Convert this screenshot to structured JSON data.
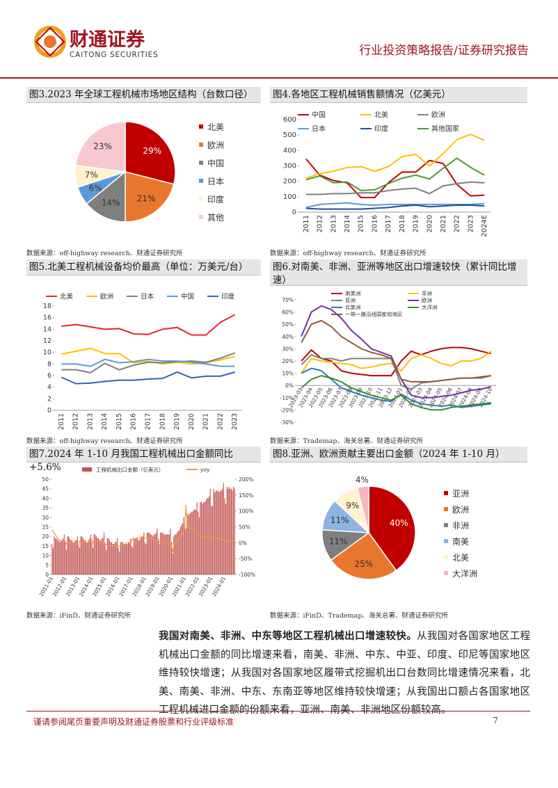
{
  "header": {
    "name": "财通证券",
    "name_en": "CAITONG SECURITIES",
    "report_type": "行业投资策略报告/证券研究报告"
  },
  "chart_data": [
    {
      "type": "pie",
      "title": "图3.2023 年全球工程机械市场地区结构（台数口径）",
      "categories": [
        "北美",
        "欧洲",
        "中国",
        "日本",
        "印度",
        "其他"
      ],
      "values": [
        29,
        21,
        14,
        6,
        7,
        23
      ],
      "value_labels": [
        "29%",
        "21%",
        "14%",
        "6%",
        "7%",
        "23%"
      ],
      "colors": [
        "#c00000",
        "#e8762c",
        "#7f7f7f",
        "#5b9bd5",
        "#fff2cc",
        "#f8c8d0"
      ],
      "source": "数据来源：off-highway research、财通证券研究所"
    },
    {
      "type": "line",
      "title": "图4.各地区工程机械销售额情况（亿美元）",
      "categories": [
        "2011",
        "2012",
        "2013",
        "2014",
        "2015",
        "2016",
        "2017",
        "2018",
        "2019",
        "2020",
        "2021",
        "2022",
        "2023",
        "2024E"
      ],
      "series": [
        {
          "name": "中国",
          "color": "#c00000",
          "values": [
            345,
            240,
            205,
            190,
            95,
            95,
            190,
            260,
            260,
            335,
            315,
            180,
            105,
            110
          ]
        },
        {
          "name": "北美",
          "color": "#ffc000",
          "values": [
            220,
            250,
            265,
            290,
            295,
            265,
            295,
            360,
            375,
            300,
            380,
            470,
            505,
            465
          ]
        },
        {
          "name": "欧洲",
          "color": "#7f7f7f",
          "values": [
            115,
            115,
            120,
            120,
            125,
            125,
            140,
            150,
            155,
            120,
            170,
            185,
            195,
            190
          ]
        },
        {
          "name": "日本",
          "color": "#5b9bd5",
          "values": [
            30,
            50,
            55,
            60,
            50,
            45,
            50,
            50,
            50,
            50,
            50,
            50,
            50,
            55
          ]
        },
        {
          "name": "印度",
          "color": "#1f4e9c",
          "values": [
            25,
            20,
            20,
            20,
            20,
            25,
            30,
            40,
            45,
            35,
            40,
            45,
            45,
            40
          ]
        },
        {
          "name": "其他国家",
          "color": "#4e9a2e",
          "values": [
            210,
            235,
            190,
            195,
            140,
            145,
            185,
            220,
            240,
            215,
            285,
            350,
            290,
            240
          ]
        }
      ],
      "ylim": [
        0,
        600
      ],
      "yticks": [
        0,
        100,
        200,
        300,
        400,
        500,
        600
      ],
      "grid": false,
      "source": "数据来源：off-highway research、财通证券研究所"
    },
    {
      "type": "line",
      "title": "图5.北美工程机械设备均价最高（单位：万美元/台）",
      "categories": [
        "2011",
        "2012",
        "2013",
        "2014",
        "2015",
        "2016",
        "2017",
        "2018",
        "2019",
        "2020",
        "2021",
        "2022",
        "2023"
      ],
      "series": [
        {
          "name": "北美",
          "color": "#e8262c",
          "values": [
            14.5,
            14.8,
            14.4,
            14.0,
            14.1,
            13.2,
            13.1,
            14.0,
            14.3,
            13.0,
            13.0,
            15.2,
            16.5
          ]
        },
        {
          "name": "欧洲",
          "color": "#ffc000",
          "values": [
            9.7,
            10.2,
            10.7,
            9.8,
            9.8,
            8.2,
            8.5,
            8.0,
            8.3,
            8.0,
            8.2,
            8.7,
            9.3
          ]
        },
        {
          "name": "日本",
          "color": "#7f7f7f",
          "values": [
            7.0,
            7.0,
            6.5,
            8.1,
            7.0,
            7.8,
            8.3,
            8.2,
            8.4,
            8.5,
            8.3,
            9.0,
            9.9
          ]
        },
        {
          "name": "中国",
          "color": "#5b9bd5",
          "values": [
            8.0,
            8.0,
            7.6,
            8.8,
            8.2,
            8.4,
            8.8,
            8.5,
            8.5,
            8.3,
            8.0,
            7.6,
            7.6
          ]
        },
        {
          "name": "印度",
          "color": "#2e64b8",
          "values": [
            5.7,
            4.6,
            4.7,
            5.0,
            5.2,
            5.2,
            5.4,
            5.5,
            6.6,
            5.6,
            5.9,
            5.9,
            6.6
          ]
        }
      ],
      "ylim": [
        0,
        18
      ],
      "yticks": [
        0,
        2,
        4,
        6,
        8,
        10,
        12,
        14,
        16,
        18
      ],
      "grid": false,
      "source": "数据来源：off-highway research、财通证券研究所"
    },
    {
      "type": "line",
      "title": "图6.对南美、非洲、亚洲等地区出口增速较快（累计同比增速）",
      "categories": [
        "2023-03",
        "2023-04",
        "2023-05",
        "2023-06",
        "2023-07",
        "2023-08",
        "2023-09",
        "2023-10",
        "2023-11",
        "2023-12",
        "2024-01",
        "2024-02",
        "2024-03",
        "2024-04",
        "2024-05",
        "2024-06",
        "2024-07",
        "2024-08",
        "2024-09",
        "2024-10"
      ],
      "series": [
        {
          "name": "南美洲",
          "color": "#c00000",
          "values": [
            20,
            29,
            22,
            20,
            12,
            10,
            9,
            8,
            8,
            8,
            20,
            28,
            25,
            28,
            30,
            31,
            31,
            30,
            28,
            26
          ]
        },
        {
          "name": "非洲",
          "color": "#ffc000",
          "values": [
            10,
            22,
            20,
            19,
            18,
            17,
            14,
            15,
            17,
            18,
            12,
            22,
            25,
            22,
            18,
            16,
            20,
            20,
            22,
            28
          ]
        },
        {
          "name": "亚洲",
          "color": "#7f7f7f",
          "values": [
            17,
            25,
            22,
            22,
            20,
            22,
            22,
            22,
            22,
            22,
            0,
            -3,
            2,
            3,
            4,
            5,
            6,
            6,
            6,
            8
          ]
        },
        {
          "name": "欧洲",
          "color": "#7030a0",
          "values": [
            40,
            60,
            65,
            62,
            55,
            45,
            38,
            30,
            27,
            24,
            5,
            -8,
            -10,
            -10,
            -9,
            -8,
            -6,
            -4,
            -3,
            -1
          ]
        },
        {
          "name": "北美洲",
          "color": "#2e75b6",
          "values": [
            10,
            14,
            12,
            5,
            -2,
            -5,
            -8,
            -10,
            -12,
            -13,
            -7,
            -12,
            -15,
            -16,
            -17,
            -16,
            -18,
            -17,
            -16,
            -15
          ]
        },
        {
          "name": "大洋洲",
          "color": "#3a8d2e",
          "values": [
            -2,
            5,
            8,
            6,
            3,
            -2,
            -5,
            -8,
            -10,
            -12,
            -8,
            -15,
            -18,
            -20,
            -20,
            -18,
            -17,
            -16,
            -15,
            -14
          ]
        },
        {
          "name": "一带一路沿线国家和地区",
          "color": "#8b5a3c",
          "values": [
            35,
            50,
            53,
            48,
            40,
            35,
            30,
            27,
            25,
            22,
            5,
            3,
            3,
            3,
            4,
            5,
            6,
            6,
            7,
            8
          ]
        }
      ],
      "ylim": [
        -30,
        70
      ],
      "yticks": [
        {
          "value": -30,
          "label": "-30%"
        },
        {
          "value": -20,
          "label": "-20%"
        },
        {
          "value": -10,
          "label": "-10%"
        },
        {
          "value": 0,
          "label": "0%"
        },
        {
          "value": 10,
          "label": "10%"
        },
        {
          "value": 20,
          "label": "20%"
        },
        {
          "value": 30,
          "label": "30%"
        },
        {
          "value": 40,
          "label": "40%"
        },
        {
          "value": 50,
          "label": "50%"
        },
        {
          "value": 60,
          "label": "60%"
        },
        {
          "value": 70,
          "label": "70%"
        }
      ],
      "grid": false,
      "source": "数据来源：Trademap、海关总署、财通证券研究所"
    },
    {
      "type": "bar_line",
      "title": "图7.2024 年 1-10 月我国工程机械出口金额同比+5.6%",
      "categories": [
        "2011-01",
        null,
        null,
        null,
        null,
        null,
        null,
        null,
        null,
        null,
        null,
        null,
        "2012-01",
        null,
        null,
        null,
        null,
        null,
        null,
        null,
        null,
        null,
        null,
        null,
        "2013-01",
        null,
        null,
        null,
        null,
        null,
        null,
        null,
        null,
        null,
        null,
        null,
        "2014-01",
        null,
        null,
        null,
        null,
        null,
        null,
        null,
        null,
        null,
        null,
        null,
        "2015-01",
        null,
        null,
        null,
        null,
        null,
        null,
        null,
        null,
        null,
        null,
        null,
        "2016-01",
        null,
        null,
        null,
        null,
        null,
        null,
        null,
        null,
        null,
        null,
        null,
        "2017-01",
        null,
        null,
        null,
        null,
        null,
        null,
        null,
        null,
        null,
        null,
        null,
        "2018-01",
        null,
        null,
        null,
        null,
        null,
        null,
        null,
        null,
        null,
        null,
        null,
        "2019-01",
        null,
        null,
        null,
        null,
        null,
        null,
        null,
        null,
        null,
        null,
        null,
        "2020-01",
        null,
        null,
        null,
        null,
        null,
        null,
        null,
        null,
        null,
        null,
        null,
        "2021-01",
        null,
        null,
        null,
        null,
        null,
        null,
        null,
        null,
        null,
        null,
        null,
        "2022-01",
        null,
        null,
        null,
        null,
        null,
        null,
        null,
        null,
        null,
        null,
        null,
        "2023-01",
        null,
        null,
        null,
        null,
        null,
        null,
        null,
        null,
        null,
        null,
        null,
        "2024-01",
        null,
        null,
        null,
        null,
        null,
        null,
        null,
        null,
        null
      ],
      "series": [
        {
          "name": "工程机械出口金额（亿美元）",
          "type": "bar",
          "color": "#c0504d",
          "values": [
            16,
            14,
            20,
            19,
            19,
            18,
            18,
            17,
            18,
            18,
            19,
            21,
            17,
            13,
            20,
            20,
            19,
            18,
            18,
            17,
            17,
            18,
            18,
            20,
            15,
            14,
            20,
            20,
            19,
            18,
            18,
            17,
            17,
            18,
            19,
            21,
            17,
            14,
            21,
            21,
            20,
            19,
            19,
            18,
            18,
            19,
            19,
            22,
            16,
            13,
            19,
            19,
            18,
            17,
            17,
            16,
            16,
            17,
            17,
            19,
            14,
            12,
            17,
            17,
            17,
            16,
            16,
            16,
            16,
            17,
            17,
            19,
            15,
            14,
            19,
            19,
            19,
            19,
            18,
            18,
            19,
            20,
            20,
            22,
            17,
            16,
            22,
            22,
            22,
            21,
            21,
            20,
            21,
            21,
            22,
            24,
            19,
            16,
            22,
            22,
            22,
            21,
            21,
            21,
            21,
            21,
            21,
            24,
            17,
            11,
            20,
            21,
            21,
            22,
            23,
            23,
            25,
            26,
            27,
            30,
            26,
            24,
            32,
            31,
            32,
            32,
            33,
            33,
            34,
            34,
            34,
            38,
            33,
            30,
            38,
            38,
            37,
            38,
            38,
            39,
            40,
            40,
            41,
            45,
            36,
            36,
            45,
            43,
            44,
            44,
            44,
            43,
            44,
            44,
            45,
            48,
            40,
            37,
            46,
            45,
            46,
            45,
            45,
            44,
            46,
            45
          ]
        },
        {
          "name": "yoy",
          "type": "line",
          "axis": "y2",
          "color": "#f79646",
          "values": [
            40,
            35,
            30,
            25,
            20,
            15,
            10,
            8,
            5,
            5,
            3,
            2,
            5,
            -5,
            0,
            2,
            -2,
            0,
            0,
            0,
            -5,
            0,
            -5,
            -5,
            -10,
            5,
            0,
            0,
            0,
            0,
            0,
            0,
            0,
            0,
            5,
            5,
            10,
            0,
            5,
            5,
            5,
            5,
            5,
            5,
            5,
            5,
            0,
            5,
            -5,
            -5,
            -10,
            -10,
            -10,
            -10,
            -10,
            -10,
            -10,
            -10,
            -10,
            -12,
            -12,
            -10,
            -10,
            -10,
            -8,
            -5,
            -5,
            0,
            0,
            0,
            0,
            0,
            5,
            15,
            10,
            12,
            12,
            15,
            15,
            15,
            18,
            18,
            18,
            15,
            15,
            15,
            15,
            15,
            15,
            12,
            15,
            12,
            10,
            5,
            10,
            10,
            12,
            0,
            0,
            0,
            0,
            0,
            0,
            5,
            0,
            0,
            -5,
            0,
            -10,
            -30,
            -10,
            -5,
            0,
            5,
            10,
            10,
            20,
            25,
            30,
            25,
            50,
            120,
            60,
            50,
            50,
            45,
            45,
            45,
            40,
            30,
            25,
            25,
            25,
            25,
            20,
            20,
            15,
            20,
            15,
            20,
            15,
            15,
            20,
            15,
            10,
            20,
            15,
            15,
            15,
            15,
            15,
            10,
            10,
            10,
            10,
            10,
            10,
            3,
            5,
            5,
            5,
            5,
            5,
            5,
            5,
            5
          ]
        }
      ],
      "ylim": [
        0,
        50
      ],
      "yticks": [
        0,
        5,
        10,
        15,
        20,
        25,
        30,
        35,
        40,
        45,
        50
      ],
      "y2lim": [
        -100,
        200
      ],
      "y2ticks": [
        {
          "value": -100,
          "label": "-100%"
        },
        {
          "value": -50,
          "label": "-50%"
        },
        {
          "value": 0,
          "label": "0%"
        },
        {
          "value": 50,
          "label": "50%"
        },
        {
          "value": 100,
          "label": "100%"
        },
        {
          "value": 150,
          "label": "150%"
        },
        {
          "value": 200,
          "label": "200%"
        }
      ],
      "grid": false,
      "source": "数据来源：iFinD、财通证券研究所"
    },
    {
      "type": "pie",
      "title": "图8.亚洲、欧洲贡献主要出口金额（2024 年 1-10 月）",
      "categories": [
        "亚洲",
        "欧洲",
        "非洲",
        "南美",
        "北美",
        "大洋洲"
      ],
      "values": [
        40,
        25,
        11,
        11,
        9,
        4
      ],
      "value_labels": [
        "40%",
        "25%",
        "11%",
        "11%",
        "9%",
        "4%"
      ],
      "colors": [
        "#c00000",
        "#e8762c",
        "#7f7f7f",
        "#8db4e2",
        "#fff2cc",
        "#f4b6c2"
      ],
      "source": "数据来源：iFinD、Trademap、海关总署、财通证券研究所"
    }
  ],
  "body": {
    "lead": "我国对南美、非洲、中东等地区工程机械出口增速较快。",
    "text": "从我国对各国家地区工程机械出口金额的同比增速来看，南美、非洲、中东、中亚、印度、印尼等国家地区维持较快增速；从我国对各国家地区履带式挖掘机出口台数同比增速情况来看，北美、南美、非洲、中东、东南亚等地区维持较快增速；从我国出口额占各国家地区工程机械进口金额的份额来看，亚洲、南美、非洲地区份额较高。"
  },
  "footer": {
    "disclaimer": "谨请参阅尾页重要声明及财通证券股票和行业评级标准",
    "page": "7"
  }
}
